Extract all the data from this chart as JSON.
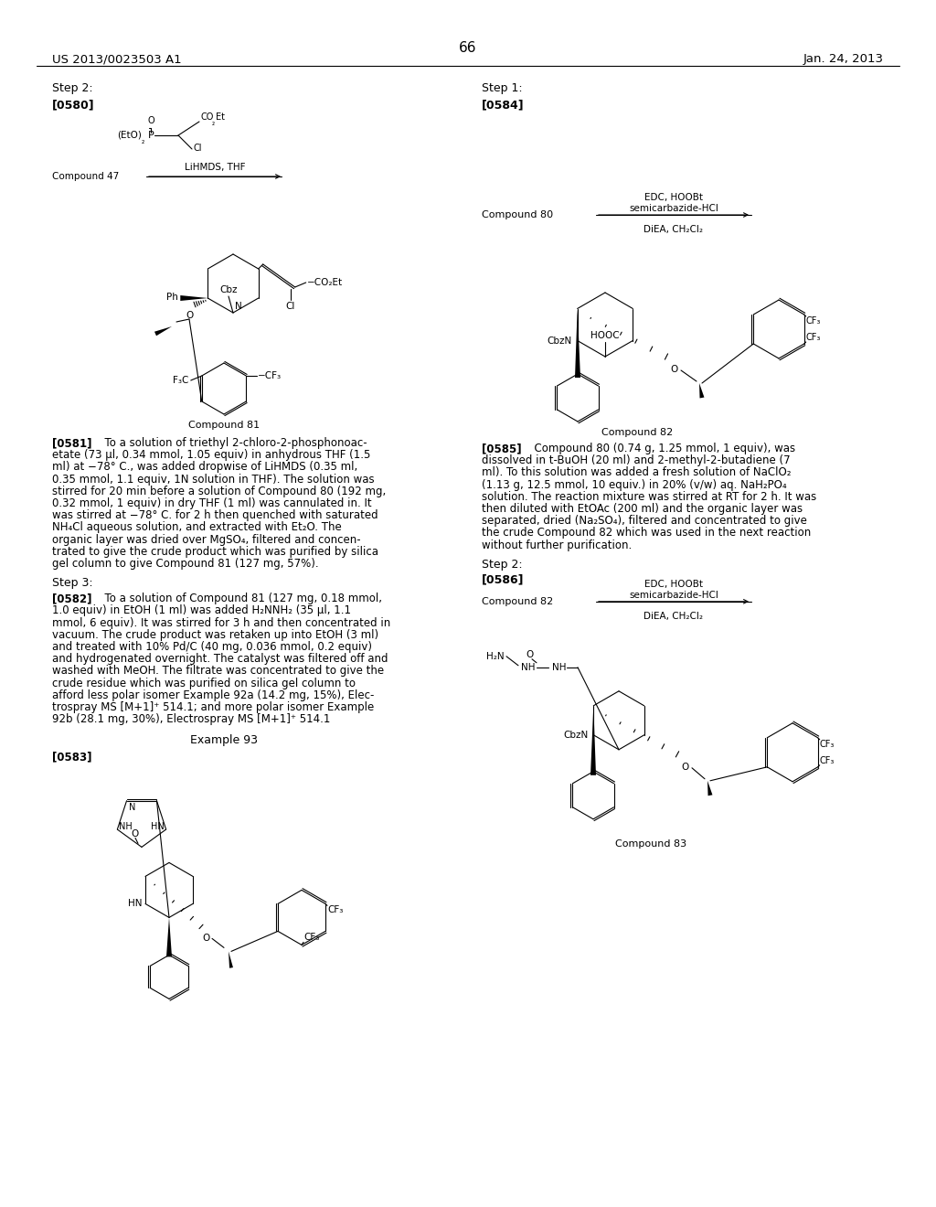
{
  "page_header_left": "US 2013/0023503 A1",
  "page_header_right": "Jan. 24, 2013",
  "page_number": "66",
  "background_color": "#ffffff",
  "para581_lines": [
    "[0581]   To a solution of triethyl 2-chloro-2-phosphonoac-",
    "etate (73 μl, 0.34 mmol, 1.05 equiv) in anhydrous THF (1.5",
    "ml) at −78° C., was added dropwise of LiHMDS (0.35 ml,",
    "0.35 mmol, 1.1 equiv, 1N solution in THF). The solution was",
    "stirred for 20 min before a solution of Compound 80 (192 mg,",
    "0.32 mmol, 1 equiv) in dry THF (1 ml) was cannulated in. It",
    "was stirred at −78° C. for 2 h then quenched with saturated",
    "NH₄Cl aqueous solution, and extracted with Et₂O. The",
    "organic layer was dried over MgSO₄, filtered and concen-",
    "trated to give the crude product which was purified by silica",
    "gel column to give Compound 81 (127 mg, 57%)."
  ],
  "para582_lines": [
    "[0582]   To a solution of Compound 81 (127 mg, 0.18 mmol,",
    "1.0 equiv) in EtOH (1 ml) was added H₂NNH₂ (35 μl, 1.1",
    "mmol, 6 equiv). It was stirred for 3 h and then concentrated in",
    "vacuum. The crude product was retaken up into EtOH (3 ml)",
    "and treated with 10% Pd/C (40 mg, 0.036 mmol, 0.2 equiv)",
    "and hydrogenated overnight. The catalyst was filtered off and",
    "washed with MeOH. The filtrate was concentrated to give the",
    "crude residue which was purified on silica gel column to",
    "afford less polar isomer Example 92a (14.2 mg, 15%), Elec-",
    "trospray MS [M+1]⁺ 514.1; and more polar isomer Example",
    "92b (28.1 mg, 30%), Electrospray MS [M+1]⁺ 514.1"
  ],
  "para585_lines": [
    "[0585]   Compound 80 (0.74 g, 1.25 mmol, 1 equiv), was",
    "dissolved in t-BuOH (20 ml) and 2-methyl-2-butadiene (7",
    "ml). To this solution was added a fresh solution of NaClO₂",
    "(1.13 g, 12.5 mmol, 10 equiv.) in 20% (v/w) aq. NaH₂PO₄",
    "solution. The reaction mixture was stirred at RT for 2 h. It was",
    "then diluted with EtOAc (200 ml) and the organic layer was",
    "separated, dried (Na₂SO₄), filtered and concentrated to give",
    "the crude Compound 82 which was used in the next reaction",
    "without further purification."
  ]
}
